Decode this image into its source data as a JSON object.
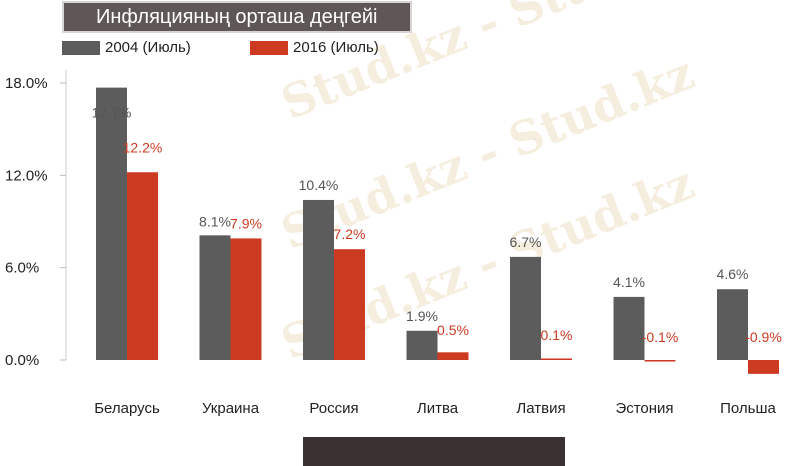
{
  "chart_data": {
    "type": "bar",
    "title": "Инфляцияның орташа деңгейі",
    "categories": [
      "Беларусь",
      "Украина",
      "Россия",
      "Литва",
      "Латвия",
      "Эстония",
      "Польша"
    ],
    "series": [
      {
        "name": "2004 (Июль)",
        "color": "#5c5c5c",
        "values": [
          17.7,
          8.1,
          10.4,
          1.9,
          6.7,
          4.1,
          4.6
        ],
        "labels": [
          "17.7%",
          "8.1%",
          "10.4%",
          "1.9%",
          "6.7%",
          "4.1%",
          "4.6%"
        ]
      },
      {
        "name": "2016 (Июль)",
        "color": "#cc3a22",
        "values": [
          12.2,
          7.9,
          7.2,
          0.5,
          0.1,
          -0.1,
          -0.9
        ],
        "labels": [
          "12.2%",
          "7.9%",
          "7.2%",
          "0.5%",
          "0.1%",
          "-0.1%",
          "-0.9%"
        ]
      }
    ],
    "y_ticks": [
      0,
      6,
      12,
      18
    ],
    "y_tick_labels": [
      "0.0%",
      "6.0%",
      "12.0%",
      "18.0%"
    ],
    "ylim": [
      -1,
      18
    ],
    "grid": false,
    "legend_position": "top-left",
    "watermark": "Stud.kz - Stud.kz"
  }
}
